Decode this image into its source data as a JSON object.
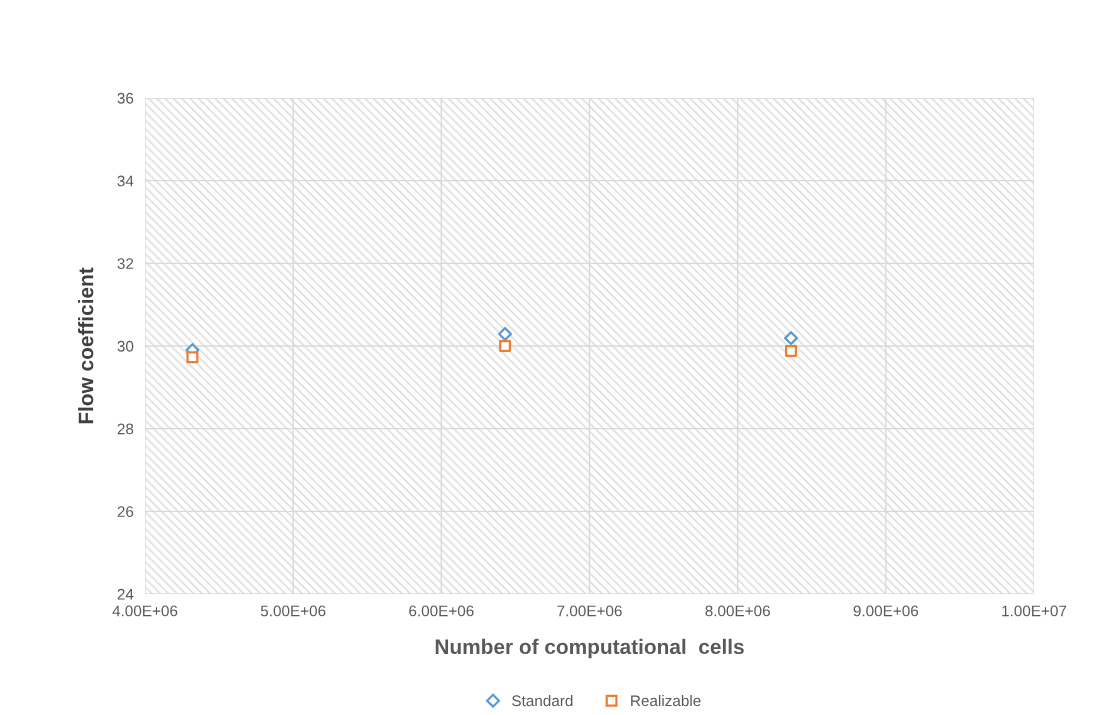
{
  "chart_data": {
    "type": "scatter",
    "xlabel": "Number of computational  cells",
    "ylabel": "Flow coefficient",
    "series": [
      {
        "name": "Standard",
        "color": "#5b9bd5",
        "marker": "diamond",
        "x": [
          4320000,
          6430000,
          8360000
        ],
        "values": [
          29.9,
          30.29,
          30.19
        ]
      },
      {
        "name": "Realizable",
        "color": "#ed7d31",
        "marker": "square",
        "x": [
          4320000,
          6430000,
          8360000
        ],
        "values": [
          29.73,
          30.0,
          29.88
        ]
      }
    ],
    "xlim": [
      4000000,
      10000000
    ],
    "xticks": [
      {
        "value": 4000000,
        "label": "4.00E+06"
      },
      {
        "value": 5000000,
        "label": "5.00E+06"
      },
      {
        "value": 6000000,
        "label": "6.00E+06"
      },
      {
        "value": 7000000,
        "label": "7.00E+06"
      },
      {
        "value": 8000000,
        "label": "8.00E+06"
      },
      {
        "value": 9000000,
        "label": "9.00E+06"
      },
      {
        "value": 10000000,
        "label": "1.00E+07"
      }
    ],
    "ylim": [
      24,
      36
    ],
    "yticks": [
      24,
      26,
      28,
      30,
      32,
      34,
      36
    ],
    "grid": true,
    "legend": "bottom"
  }
}
